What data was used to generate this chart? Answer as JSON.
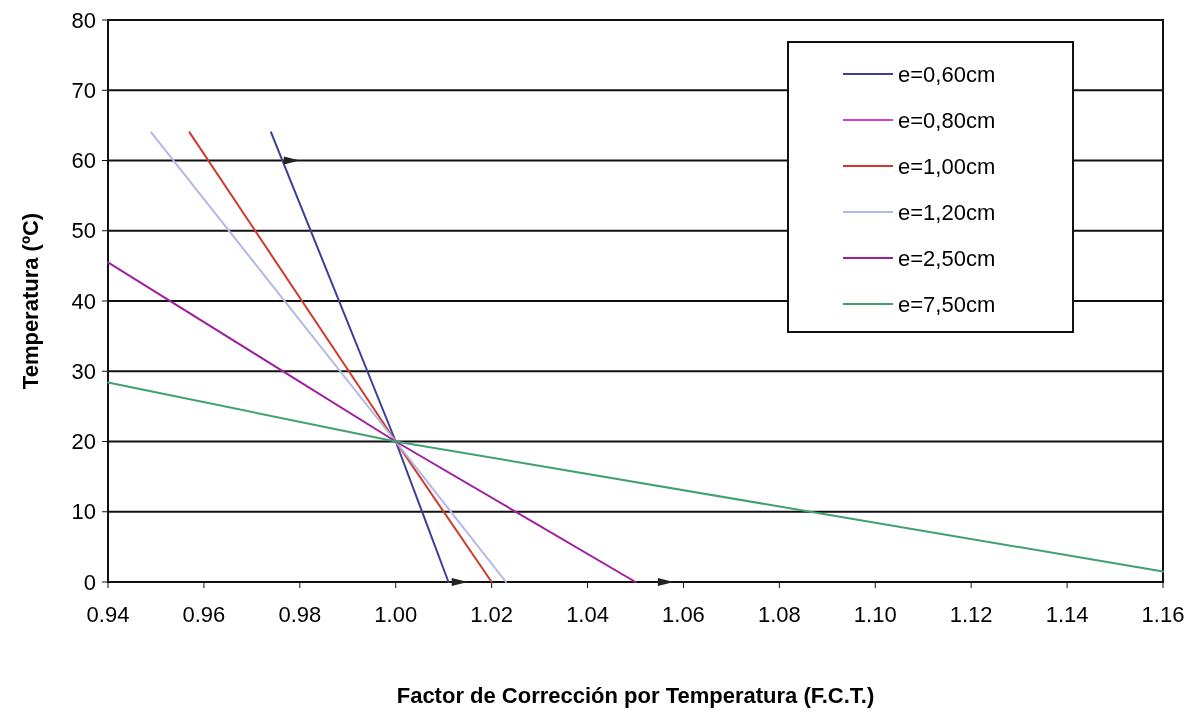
{
  "chart_data": {
    "type": "line",
    "xlabel": "Factor de Corrección por Temperatura (F.C.T.)",
    "ylabel": "Temperatura (ºC)",
    "xlim": [
      0.94,
      1.16
    ],
    "xticks": [
      0.94,
      0.96,
      0.98,
      {
        "value": 1,
        "label": "1.00"
      },
      1.02,
      1.04,
      1.06,
      1.08,
      {
        "value": 1.1,
        "label": "1.10"
      },
      1.12,
      1.14,
      1.16
    ],
    "ylim": [
      0,
      80
    ],
    "yticks": [
      0,
      10,
      20,
      30,
      40,
      50,
      60,
      70,
      80
    ],
    "grid": "y",
    "legend": "top right",
    "marker": "none",
    "line_style": "solid",
    "series": [
      {
        "name": "e=0,60cm",
        "color": "#3a3f9a",
        "x": [
          0.974,
          1.0,
          1.011
        ],
        "values": [
          64,
          20,
          0
        ]
      },
      {
        "name": "e=0,80cm",
        "color": "#d040d0"
      },
      {
        "name": "e=1,00cm",
        "color": "#d03a2a",
        "x": [
          0.957,
          1.0,
          1.02
        ],
        "values": [
          64,
          20,
          0
        ]
      },
      {
        "name": "e=1,20cm",
        "color": "#b0b8e8",
        "x": [
          0.949,
          1.0,
          1.023
        ],
        "values": [
          64,
          20,
          0
        ]
      },
      {
        "name": "e=2,50cm",
        "color": "#a020a0",
        "x": [
          0.94,
          1.0,
          1.05
        ],
        "values": [
          45.5,
          20,
          0
        ]
      },
      {
        "name": "e=7,50cm",
        "color": "#40a070",
        "x": [
          0.94,
          1.0,
          1.16
        ],
        "values": [
          28.4,
          20,
          1.5
        ]
      }
    ]
  }
}
